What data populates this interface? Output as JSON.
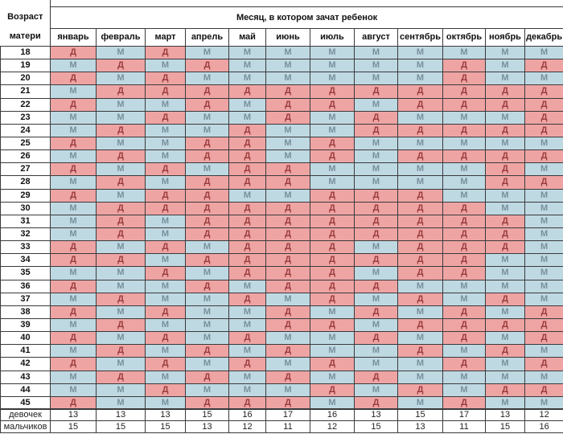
{
  "header": {
    "age_label_line1": "Возраст",
    "age_label_line2": "матери"
  },
  "colors": {
    "girl_bg": "#efa4a4",
    "boy_bg": "#bfd9e3",
    "girl_text": "#9a3c3c",
    "boy_text": "#78909c",
    "border": "#3a3a3a",
    "background": "#ffffff"
  },
  "chart_data": {
    "type": "table",
    "title": "Месяц, в котором зачат ребенок",
    "row_axis_label": "Возраст матери",
    "girl_letter": "Д",
    "boy_letter": "М",
    "columns": [
      "январь",
      "февраль",
      "март",
      "апрель",
      "май",
      "июнь",
      "июль",
      "август",
      "сентябрь",
      "октябрь",
      "ноябрь",
      "декабрь"
    ],
    "rows": [
      {
        "age": "18",
        "cells": [
          "Д",
          "М",
          "Д",
          "М",
          "М",
          "М",
          "М",
          "М",
          "М",
          "М",
          "М",
          "М"
        ]
      },
      {
        "age": "19",
        "cells": [
          "М",
          "Д",
          "М",
          "Д",
          "М",
          "М",
          "М",
          "М",
          "М",
          "Д",
          "М",
          "Д"
        ]
      },
      {
        "age": "20",
        "cells": [
          "Д",
          "М",
          "Д",
          "М",
          "М",
          "М",
          "М",
          "М",
          "М",
          "Д",
          "М",
          "М"
        ]
      },
      {
        "age": "21",
        "cells": [
          "М",
          "Д",
          "Д",
          "Д",
          "Д",
          "Д",
          "Д",
          "Д",
          "Д",
          "Д",
          "Д",
          "Д"
        ]
      },
      {
        "age": "22",
        "cells": [
          "Д",
          "М",
          "М",
          "Д",
          "М",
          "Д",
          "Д",
          "М",
          "Д",
          "Д",
          "Д",
          "Д"
        ]
      },
      {
        "age": "23",
        "cells": [
          "М",
          "М",
          "Д",
          "М",
          "М",
          "Д",
          "М",
          "Д",
          "М",
          "М",
          "М",
          "Д"
        ]
      },
      {
        "age": "24",
        "cells": [
          "М",
          "Д",
          "М",
          "М",
          "Д",
          "М",
          "М",
          "Д",
          "Д",
          "Д",
          "Д",
          "Д"
        ]
      },
      {
        "age": "25",
        "cells": [
          "Д",
          "М",
          "М",
          "Д",
          "Д",
          "М",
          "Д",
          "М",
          "М",
          "М",
          "М",
          "М"
        ]
      },
      {
        "age": "26",
        "cells": [
          "М",
          "Д",
          "М",
          "Д",
          "Д",
          "М",
          "Д",
          "М",
          "Д",
          "Д",
          "Д",
          "Д"
        ]
      },
      {
        "age": "27",
        "cells": [
          "Д",
          "М",
          "Д",
          "М",
          "Д",
          "Д",
          "М",
          "М",
          "М",
          "М",
          "Д",
          "М"
        ]
      },
      {
        "age": "28",
        "cells": [
          "М",
          "Д",
          "М",
          "Д",
          "Д",
          "Д",
          "М",
          "М",
          "М",
          "М",
          "Д",
          "Д"
        ]
      },
      {
        "age": "29",
        "cells": [
          "Д",
          "М",
          "Д",
          "Д",
          "М",
          "М",
          "Д",
          "Д",
          "Д",
          "М",
          "М",
          "М"
        ]
      },
      {
        "age": "30",
        "cells": [
          "М",
          "Д",
          "Д",
          "Д",
          "Д",
          "Д",
          "Д",
          "Д",
          "Д",
          "Д",
          "М",
          "М"
        ]
      },
      {
        "age": "31",
        "cells": [
          "М",
          "Д",
          "М",
          "Д",
          "Д",
          "Д",
          "Д",
          "Д",
          "Д",
          "Д",
          "Д",
          "М"
        ]
      },
      {
        "age": "32",
        "cells": [
          "М",
          "Д",
          "М",
          "Д",
          "Д",
          "Д",
          "Д",
          "Д",
          "Д",
          "Д",
          "Д",
          "М"
        ]
      },
      {
        "age": "33",
        "cells": [
          "Д",
          "М",
          "Д",
          "М",
          "Д",
          "Д",
          "Д",
          "М",
          "Д",
          "Д",
          "Д",
          "М"
        ]
      },
      {
        "age": "34",
        "cells": [
          "Д",
          "Д",
          "М",
          "Д",
          "Д",
          "Д",
          "Д",
          "Д",
          "Д",
          "Д",
          "М",
          "М"
        ]
      },
      {
        "age": "35",
        "cells": [
          "М",
          "М",
          "Д",
          "М",
          "Д",
          "Д",
          "Д",
          "М",
          "Д",
          "Д",
          "М",
          "М"
        ]
      },
      {
        "age": "36",
        "cells": [
          "Д",
          "М",
          "М",
          "Д",
          "М",
          "Д",
          "Д",
          "Д",
          "М",
          "М",
          "М",
          "М"
        ]
      },
      {
        "age": "37",
        "cells": [
          "М",
          "Д",
          "М",
          "М",
          "Д",
          "М",
          "Д",
          "М",
          "Д",
          "М",
          "Д",
          "М"
        ]
      },
      {
        "age": "38",
        "cells": [
          "Д",
          "М",
          "Д",
          "М",
          "М",
          "Д",
          "М",
          "Д",
          "М",
          "Д",
          "М",
          "Д"
        ]
      },
      {
        "age": "39",
        "cells": [
          "М",
          "Д",
          "М",
          "М",
          "М",
          "Д",
          "Д",
          "М",
          "Д",
          "Д",
          "Д",
          "Д"
        ]
      },
      {
        "age": "40",
        "cells": [
          "Д",
          "М",
          "Д",
          "М",
          "Д",
          "М",
          "М",
          "Д",
          "М",
          "Д",
          "М",
          "Д"
        ]
      },
      {
        "age": "41",
        "cells": [
          "М",
          "Д",
          "М",
          "Д",
          "М",
          "Д",
          "М",
          "М",
          "Д",
          "М",
          "Д",
          "М"
        ]
      },
      {
        "age": "42",
        "cells": [
          "Д",
          "М",
          "Д",
          "М",
          "Д",
          "М",
          "Д",
          "М",
          "М",
          "Д",
          "М",
          "Д"
        ]
      },
      {
        "age": "43",
        "cells": [
          "М",
          "Д",
          "М",
          "Д",
          "М",
          "Д",
          "М",
          "Д",
          "М",
          "М",
          "М",
          "М"
        ]
      },
      {
        "age": "44",
        "cells": [
          "М",
          "М",
          "Д",
          "М",
          "М",
          "М",
          "Д",
          "М",
          "Д",
          "М",
          "Д",
          "Д"
        ]
      },
      {
        "age": "45",
        "cells": [
          "Д",
          "М",
          "М",
          "Д",
          "Д",
          "Д",
          "М",
          "Д",
          "М",
          "Д",
          "М",
          "М"
        ]
      }
    ],
    "footer": [
      {
        "label": "девочек",
        "values": [
          "13",
          "13",
          "13",
          "15",
          "16",
          "17",
          "16",
          "13",
          "15",
          "17",
          "13",
          "12"
        ]
      },
      {
        "label": "мальчиков",
        "values": [
          "15",
          "15",
          "15",
          "13",
          "12",
          "11",
          "12",
          "15",
          "13",
          "11",
          "15",
          "16"
        ]
      }
    ]
  }
}
